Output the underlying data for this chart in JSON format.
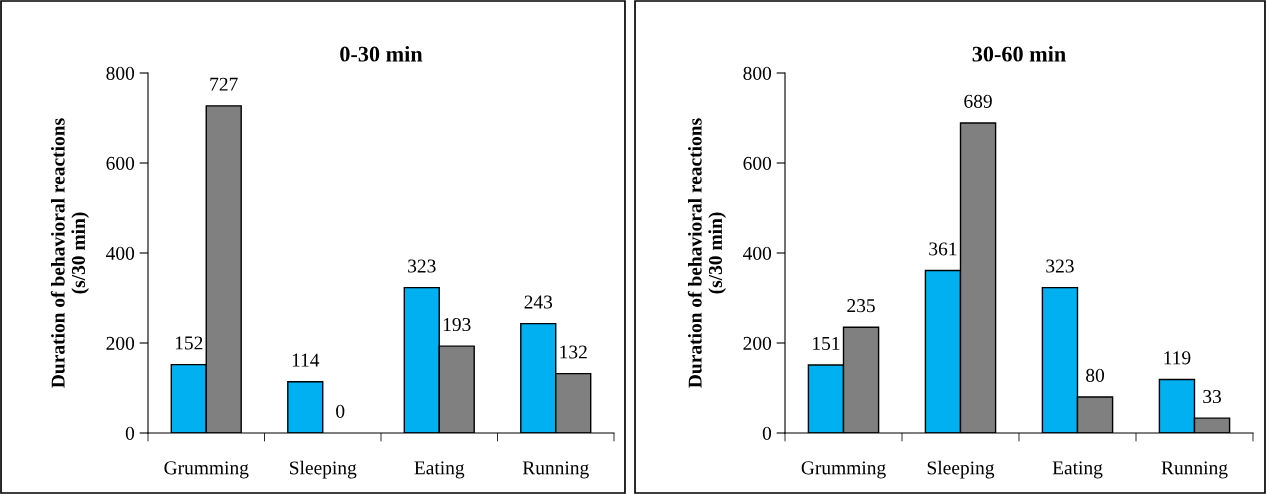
{
  "chart_data": [
    {
      "type": "bar",
      "title": "0-30 min",
      "ylabel": "Duration of behavioral reactions\n(s/30 min)",
      "categories": [
        "Grumming",
        "Sleeping",
        "Eating",
        "Running"
      ],
      "series": [
        {
          "color": "#00b0f0",
          "values": [
            152,
            114,
            323,
            243
          ]
        },
        {
          "color": "#808080",
          "values": [
            727,
            0,
            193,
            132
          ]
        }
      ],
      "ylim": [
        0,
        800
      ],
      "yticks": [
        0,
        200,
        400,
        600,
        800
      ],
      "data_labels": true,
      "grid": false,
      "legend": false
    },
    {
      "type": "bar",
      "title": "30-60 min",
      "ylabel": "Duration of behavioral reactions\n(s/30 min)",
      "categories": [
        "Grumming",
        "Sleeping",
        "Eating",
        "Running"
      ],
      "series": [
        {
          "color": "#00b0f0",
          "values": [
            151,
            361,
            323,
            119
          ]
        },
        {
          "color": "#808080",
          "values": [
            235,
            689,
            80,
            33
          ]
        }
      ],
      "ylim": [
        0,
        800
      ],
      "yticks": [
        0,
        200,
        400,
        600,
        800
      ],
      "data_labels": true,
      "grid": false,
      "legend": false
    }
  ]
}
